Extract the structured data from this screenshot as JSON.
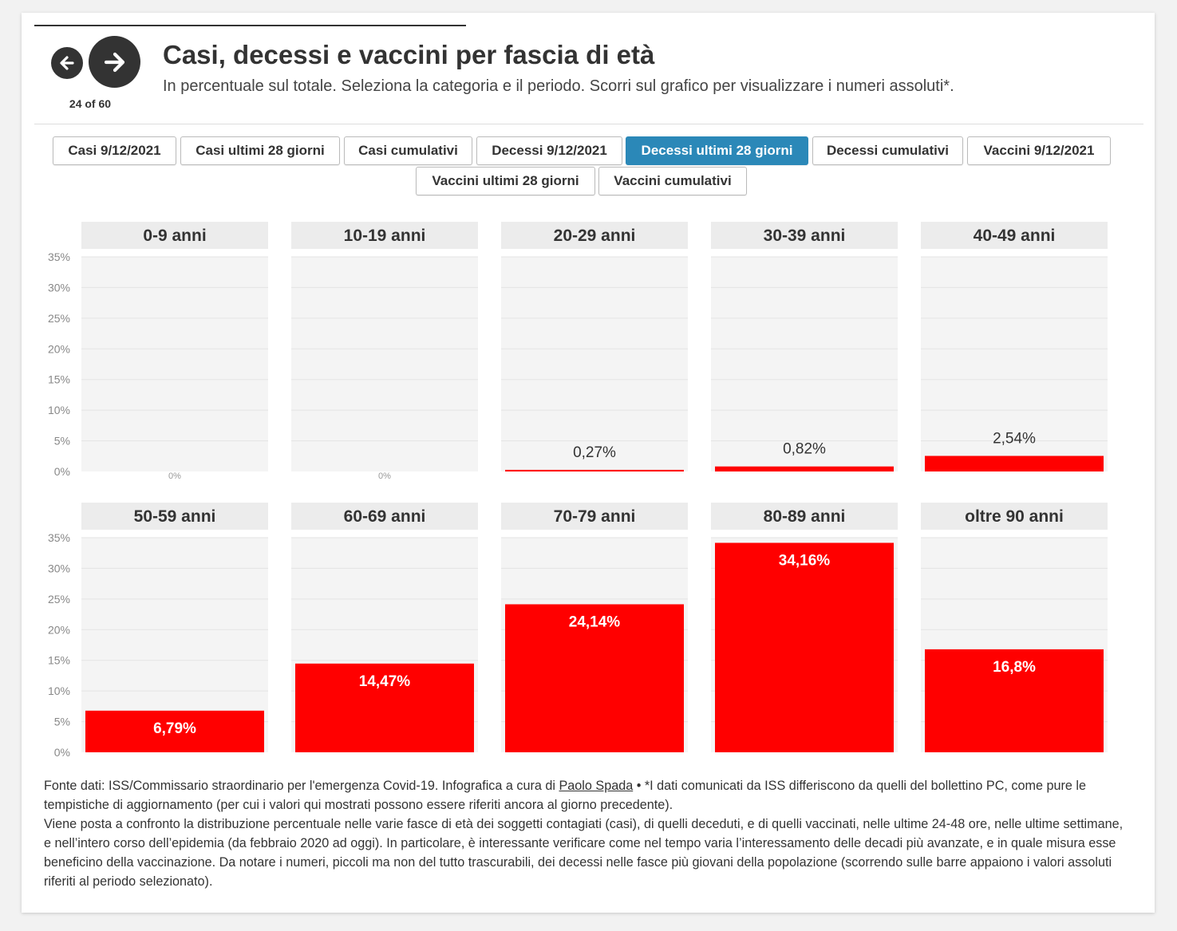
{
  "header": {
    "title": "Casi, decessi e vaccini per fascia di età",
    "subtitle": "In percentuale sul totale. Seleziona la categoria e il periodo. Scorri sul grafico per visualizzare i numeri assoluti*.",
    "counter": "24 of 60"
  },
  "tabs": [
    {
      "label": "Casi 9/12/2021",
      "active": false
    },
    {
      "label": "Casi ultimi 28 giorni",
      "active": false
    },
    {
      "label": "Casi cumulativi",
      "active": false
    },
    {
      "label": "Decessi 9/12/2021",
      "active": false
    },
    {
      "label": "Decessi ultimi 28 giorni",
      "active": true
    },
    {
      "label": "Decessi cumulativi",
      "active": false
    },
    {
      "label": "Vaccini 9/12/2021",
      "active": false
    },
    {
      "label": "Vaccini ultimi 28 giorni",
      "active": false
    },
    {
      "label": "Vaccini cumulativi",
      "active": false
    }
  ],
  "colors": {
    "bar": "#ff0000",
    "panel_bg": "#f4f4f4",
    "header_bg": "#ececec",
    "active_tab": "#2b88b8"
  },
  "chart_data": {
    "type": "bar",
    "categories": [
      "0-9 anni",
      "10-19 anni",
      "20-29 anni",
      "30-39 anni",
      "40-49 anni",
      "50-59 anni",
      "60-69 anni",
      "70-79 anni",
      "80-89 anni",
      "oltre 90 anni"
    ],
    "values": [
      0,
      0,
      0.27,
      0.82,
      2.54,
      6.79,
      14.47,
      24.14,
      34.16,
      16.8
    ],
    "value_labels": [
      "0%",
      "0%",
      "0,27%",
      "0,82%",
      "2,54%",
      "6,79%",
      "14,47%",
      "24,14%",
      "34,16%",
      "16,8%"
    ],
    "ylim": [
      0,
      35
    ],
    "yticks": [
      0,
      5,
      10,
      15,
      20,
      25,
      30,
      35
    ],
    "ytick_labels": [
      "0%",
      "5%",
      "10%",
      "15%",
      "20%",
      "25%",
      "30%",
      "35%"
    ],
    "grid": true,
    "layout": "small multiples, 2 rows x 5 columns"
  },
  "footer": {
    "source_prefix": "Fonte dati: ISS/Commissario straordinario per l'emergenza Covid-19. Infografica a cura di ",
    "author_link": "Paolo Spada",
    "source_suffix": " • *I dati comunicati da ISS differiscono da quelli del bollettino PC, come pure le tempistiche di aggiornamento (per cui i valori qui mostrati possono essere riferiti ancora al giorno precedente).",
    "description": "Viene posta a confronto la distribuzione percentuale nelle varie fasce di età dei soggetti contagiati (casi), di quelli deceduti, e di quelli vaccinati, nelle ultime 24-48 ore, nelle ultime settimane, e nell’intero corso dell’epidemia (da febbraio 2020 ad oggi). In particolare, è interessante verificare come nel tempo varia l’interessamento delle decadi più avanzate, e in quale misura esse beneficino della vaccinazione. Da notare i numeri, piccoli ma non del tutto trascurabili, dei decessi nelle fasce più giovani della popolazione (scorrendo sulle barre appaiono i valori assoluti riferiti al periodo selezionato)."
  }
}
